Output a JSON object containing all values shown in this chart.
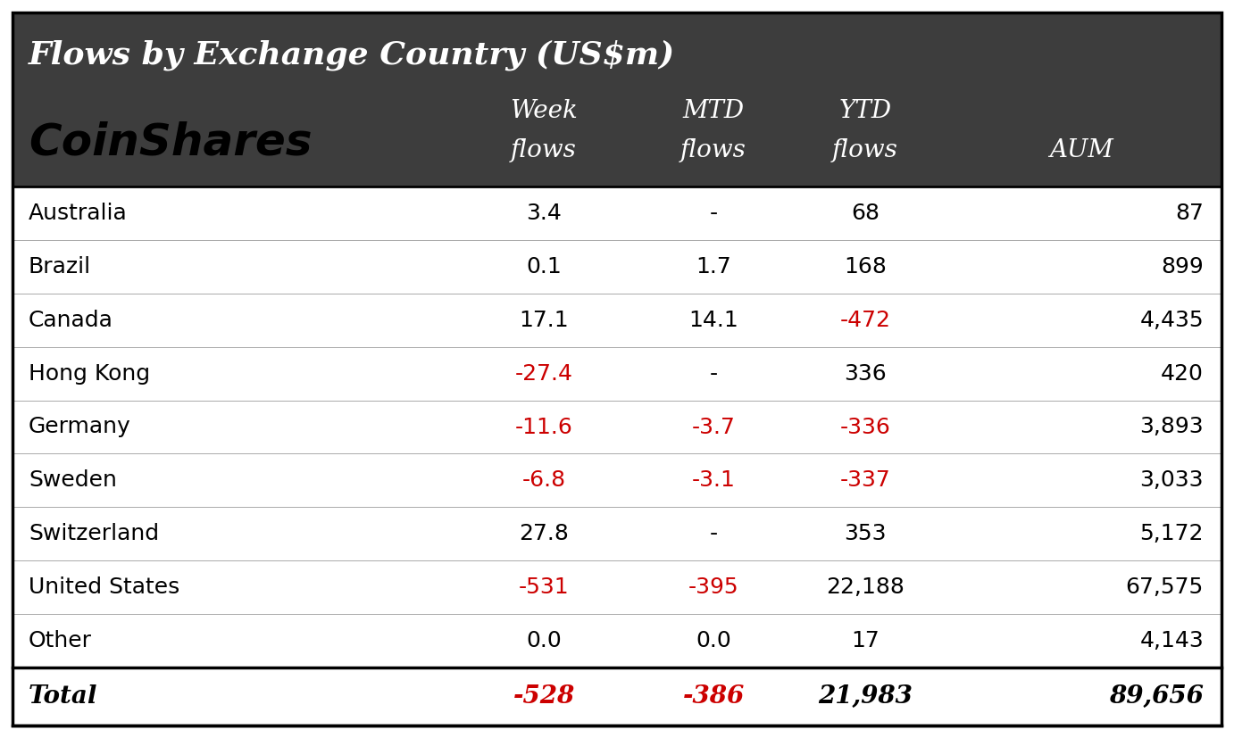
{
  "title": "Flows by Exchange Country (US$m)",
  "header_bg": "#3d3d3d",
  "header_text_color": "#ffffff",
  "body_bg": "#ffffff",
  "border_color": "#000000",
  "rows": [
    {
      "country": "Australia",
      "week": "3.4",
      "mtd": "-",
      "ytd": "68",
      "aum": "87",
      "week_neg": false,
      "mtd_neg": false,
      "ytd_neg": false
    },
    {
      "country": "Brazil",
      "week": "0.1",
      "mtd": "1.7",
      "ytd": "168",
      "aum": "899",
      "week_neg": false,
      "mtd_neg": false,
      "ytd_neg": false
    },
    {
      "country": "Canada",
      "week": "17.1",
      "mtd": "14.1",
      "ytd": "-472",
      "aum": "4,435",
      "week_neg": false,
      "mtd_neg": false,
      "ytd_neg": true
    },
    {
      "country": "Hong Kong",
      "week": "-27.4",
      "mtd": "-",
      "ytd": "336",
      "aum": "420",
      "week_neg": true,
      "mtd_neg": false,
      "ytd_neg": false
    },
    {
      "country": "Germany",
      "week": "-11.6",
      "mtd": "-3.7",
      "ytd": "-336",
      "aum": "3,893",
      "week_neg": true,
      "mtd_neg": true,
      "ytd_neg": true
    },
    {
      "country": "Sweden",
      "week": "-6.8",
      "mtd": "-3.1",
      "ytd": "-337",
      "aum": "3,033",
      "week_neg": true,
      "mtd_neg": true,
      "ytd_neg": true
    },
    {
      "country": "Switzerland",
      "week": "27.8",
      "mtd": "-",
      "ytd": "353",
      "aum": "5,172",
      "week_neg": false,
      "mtd_neg": false,
      "ytd_neg": false
    },
    {
      "country": "United States",
      "week": "-531",
      "mtd": "-395",
      "ytd": "22,188",
      "aum": "67,575",
      "week_neg": true,
      "mtd_neg": true,
      "ytd_neg": false
    },
    {
      "country": "Other",
      "week": "0.0",
      "mtd": "0.0",
      "ytd": "17",
      "aum": "4,143",
      "week_neg": false,
      "mtd_neg": false,
      "ytd_neg": false
    }
  ],
  "total": {
    "country": "Total",
    "week": "-528",
    "mtd": "-386",
    "ytd": "21,983",
    "aum": "89,656",
    "week_neg": true,
    "mtd_neg": true,
    "ytd_neg": false
  },
  "positive_color": "#000000",
  "negative_color": "#cc0000",
  "logo_text": "CoinShares",
  "col_header_line1": [
    "Week",
    "MTD",
    "YTD",
    ""
  ],
  "col_header_line2": [
    "flows",
    "flows",
    "flows",
    "AUM"
  ]
}
